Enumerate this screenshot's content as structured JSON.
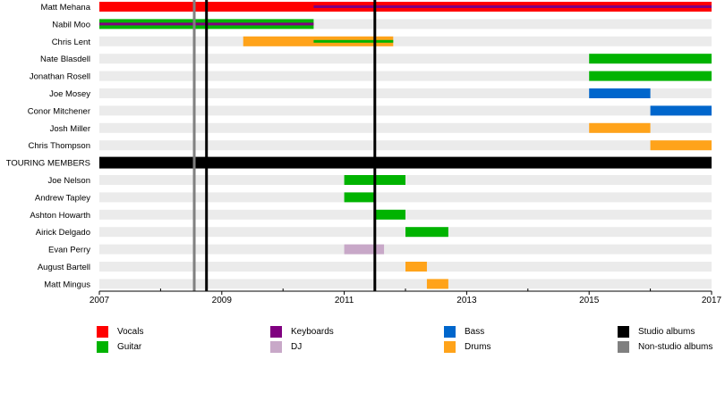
{
  "chart_data": {
    "type": "bar",
    "subtype": "timeline",
    "title": "",
    "xlabel": "",
    "ylabel": "",
    "xlim": [
      2007,
      2017
    ],
    "x_ticks": [
      "2007",
      "2009",
      "2011",
      "2013",
      "2015",
      "2017"
    ],
    "members": [
      "Matt Mehana",
      "Nabil Moo",
      "Chris Lent",
      "Nate Blasdell",
      "Jonathan Rosell",
      "Joe Mosey",
      "Conor Mitchener",
      "Josh Miller",
      "Chris Thompson",
      "TOURING MEMBERS",
      "Joe Nelson",
      "Andrew Tapley",
      "Ashton Howarth",
      "Airick Delgado",
      "Evan Perry",
      "August Bartell",
      "Matt Mingus"
    ],
    "section_header_row": 9,
    "bars": [
      {
        "row": 0,
        "role": "Vocals",
        "start": 2007.0,
        "end": 2017.0
      },
      {
        "row": 0,
        "role": "Keyboards",
        "start": 2010.5,
        "end": 2017.0,
        "overlay": true
      },
      {
        "row": 1,
        "role": "Guitar",
        "start": 2007.0,
        "end": 2010.5
      },
      {
        "row": 1,
        "role": "Keyboards",
        "start": 2007.0,
        "end": 2010.5,
        "overlay": true
      },
      {
        "row": 2,
        "role": "Drums",
        "start": 2009.35,
        "end": 2011.8
      },
      {
        "row": 2,
        "role": "Guitar",
        "start": 2010.5,
        "end": 2011.8,
        "overlay": true
      },
      {
        "row": 3,
        "role": "Guitar",
        "start": 2015.0,
        "end": 2017.0
      },
      {
        "row": 4,
        "role": "Guitar",
        "start": 2015.0,
        "end": 2017.0
      },
      {
        "row": 5,
        "role": "Bass",
        "start": 2015.0,
        "end": 2016.0
      },
      {
        "row": 6,
        "role": "Bass",
        "start": 2016.0,
        "end": 2017.0
      },
      {
        "row": 7,
        "role": "Drums",
        "start": 2015.0,
        "end": 2016.0
      },
      {
        "row": 8,
        "role": "Drums",
        "start": 2016.0,
        "end": 2017.0
      },
      {
        "row": 10,
        "role": "Guitar",
        "start": 2011.0,
        "end": 2012.0
      },
      {
        "row": 11,
        "role": "Guitar",
        "start": 2011.0,
        "end": 2011.5
      },
      {
        "row": 12,
        "role": "Guitar",
        "start": 2011.5,
        "end": 2012.0
      },
      {
        "row": 13,
        "role": "Guitar",
        "start": 2012.0,
        "end": 2012.7
      },
      {
        "row": 14,
        "role": "DJ",
        "start": 2011.0,
        "end": 2011.65
      },
      {
        "row": 15,
        "role": "Drums",
        "start": 2012.0,
        "end": 2012.35
      },
      {
        "row": 16,
        "role": "Drums",
        "start": 2012.35,
        "end": 2012.7
      }
    ],
    "release_lines": [
      {
        "type": "Non-studio albums",
        "year": 2008.55
      },
      {
        "type": "Studio albums",
        "year": 2008.75
      },
      {
        "type": "Studio albums",
        "year": 2011.5
      }
    ],
    "legend": [
      {
        "label": "Vocals",
        "color": "#ff0000"
      },
      {
        "label": "Keyboards",
        "color": "#800080"
      },
      {
        "label": "Bass",
        "color": "#0066cc"
      },
      {
        "label": "Studio albums",
        "color": "#000000"
      },
      {
        "label": "Guitar",
        "color": "#00b300"
      },
      {
        "label": "DJ",
        "color": "#c8a8c8"
      },
      {
        "label": "Drums",
        "color": "#ffa31a"
      },
      {
        "label": "Non-studio albums",
        "color": "#808080"
      }
    ],
    "legend_position": "bottom",
    "grid": true
  }
}
